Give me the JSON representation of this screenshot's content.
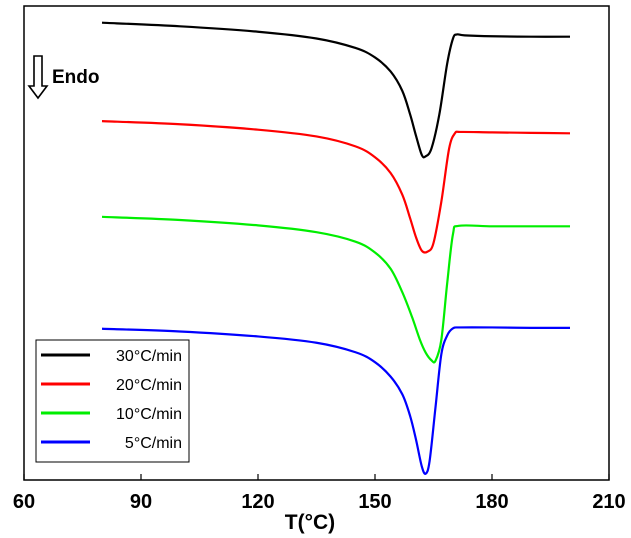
{
  "chart_data": {
    "type": "line",
    "title": "",
    "xlabel": "T(°C)",
    "ylabel": "",
    "xlim": [
      60,
      210
    ],
    "xticks": [
      60,
      90,
      120,
      150,
      180,
      210
    ],
    "xtick_labels": [
      "60",
      "90",
      "120",
      "150",
      "180",
      "210"
    ],
    "y_axis_visible": false,
    "grid": false,
    "annotation": {
      "text": "Endo",
      "arrow": "down"
    },
    "legend": {
      "placement": "bottom-left"
    },
    "series": [
      {
        "name": "30°C/min",
        "color": "#000000",
        "x": [
          80,
          100,
          120,
          135,
          145,
          150,
          154,
          157,
          159,
          160.5,
          162,
          163,
          164.5,
          166.5,
          168.5,
          170,
          171,
          173,
          180,
          190,
          200
        ],
        "y": [
          0.963,
          0.955,
          0.943,
          0.928,
          0.907,
          0.886,
          0.855,
          0.812,
          0.76,
          0.713,
          0.67,
          0.667,
          0.685,
          0.76,
          0.872,
          0.928,
          0.937,
          0.935,
          0.933,
          0.932,
          0.932
        ]
      },
      {
        "name": "20°C/min",
        "color": "#ff0000",
        "x": [
          80,
          100,
          120,
          135,
          145,
          150,
          154,
          157,
          159,
          160.5,
          162,
          163.5,
          165,
          167,
          169,
          170.5,
          172,
          180,
          190,
          200
        ],
        "y": [
          0.745,
          0.738,
          0.726,
          0.711,
          0.689,
          0.665,
          0.63,
          0.582,
          0.53,
          0.488,
          0.458,
          0.456,
          0.475,
          0.566,
          0.684,
          0.718,
          0.721,
          0.72,
          0.719,
          0.718
        ]
      },
      {
        "name": "10°C/min",
        "color": "#00ee00",
        "x": [
          80,
          100,
          120,
          135,
          145,
          150,
          154,
          157,
          159.5,
          161.5,
          163,
          164.5,
          165.5,
          167,
          168.5,
          170,
          171.5,
          180,
          190,
          200
        ],
        "y": [
          0.533,
          0.526,
          0.514,
          0.499,
          0.478,
          0.454,
          0.418,
          0.366,
          0.311,
          0.261,
          0.232,
          0.215,
          0.214,
          0.26,
          0.385,
          0.495,
          0.513,
          0.512,
          0.512,
          0.512
        ]
      },
      {
        "name": "5°C/min",
        "color": "#0000ff",
        "x": [
          80,
          100,
          120,
          135,
          145,
          150,
          154,
          157,
          159,
          160.5,
          162,
          163,
          164,
          165.5,
          167,
          168.5,
          170,
          172,
          180,
          190,
          200
        ],
        "y": [
          0.285,
          0.279,
          0.268,
          0.254,
          0.233,
          0.211,
          0.179,
          0.14,
          0.092,
          0.04,
          -0.02,
          -0.036,
          -0.008,
          0.11,
          0.228,
          0.27,
          0.286,
          0.288,
          0.288,
          0.287,
          0.287
        ]
      }
    ]
  }
}
